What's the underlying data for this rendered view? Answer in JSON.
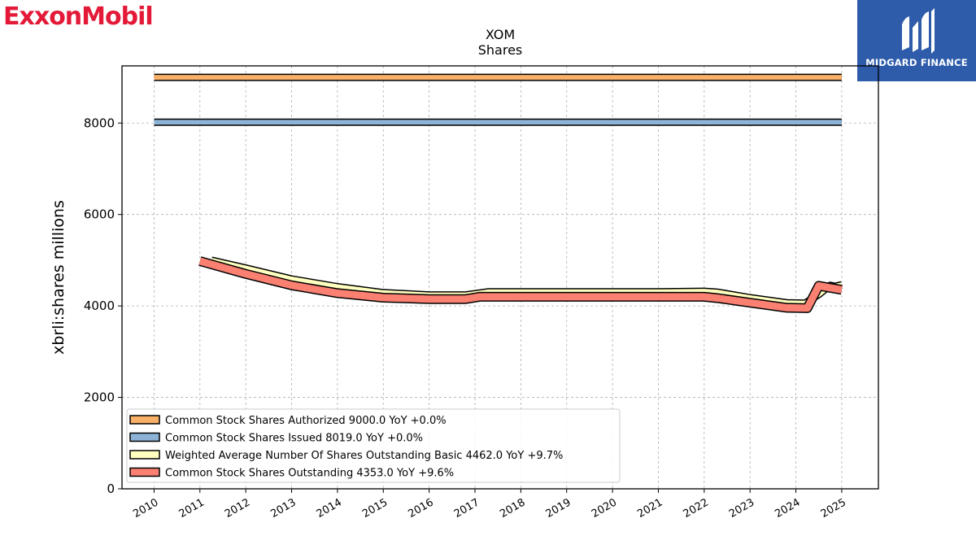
{
  "brand": {
    "logo_text": "ExxonMobil",
    "color": "#e31937"
  },
  "watermark": {
    "name": "MIDGARD FINANCE",
    "bg_color": "#2e5cab"
  },
  "chart_data": {
    "type": "line",
    "title": "XOM",
    "subtitle": "Shares",
    "ylabel": "xbrli:shares millions",
    "xlabel": "",
    "xlim": [
      2009.3,
      2025.8
    ],
    "ylim": [
      0,
      9250
    ],
    "grid": true,
    "legend_position": "lower-left",
    "xticks": [
      "2010",
      "2011",
      "2012",
      "2013",
      "2014",
      "2015",
      "2016",
      "2017",
      "2018",
      "2019",
      "2020",
      "2021",
      "2022",
      "2023",
      "2024",
      "2025"
    ],
    "yticks": [
      0,
      2000,
      4000,
      6000,
      8000
    ],
    "series": [
      {
        "name": "Common Stock Shares Authorized",
        "legend_label": "Common Stock Shares Authorized  9000.0 YoY +0.0%",
        "color": "#f9b067",
        "x": [
          2010.0,
          2025.0
        ],
        "values": [
          9000,
          9000
        ]
      },
      {
        "name": "Common Stock Shares Issued",
        "legend_label": "Common Stock Shares Issued  8019.0 YoY +0.0%",
        "color": "#8db3d6",
        "x": [
          2010.0,
          2025.0
        ],
        "values": [
          8019,
          8019
        ]
      },
      {
        "name": "Weighted Average Number Of Shares Outstanding Basic",
        "legend_label": "Weighted Average Number Of Shares Outstanding Basic  4462.0 YoY +9.7%",
        "color": "#ffffbf",
        "x": [
          2011.25,
          2012.0,
          2013.0,
          2014.0,
          2015.0,
          2016.0,
          2016.8,
          2017.3,
          2018.0,
          2019.0,
          2020.0,
          2021.0,
          2022.0,
          2022.3,
          2023.0,
          2023.8,
          2024.2,
          2024.5,
          2024.75,
          2024.85,
          2025.0
        ],
        "values": [
          5000,
          4830,
          4590,
          4420,
          4290,
          4240,
          4240,
          4310,
          4310,
          4310,
          4310,
          4310,
          4320,
          4300,
          4180,
          4070,
          4060,
          4250,
          4450,
          4430,
          4462
        ]
      },
      {
        "name": "Common Stock Shares Outstanding",
        "legend_label": "Common Stock Shares Outstanding  4353.0 YoY +9.6%",
        "color": "#fa8072",
        "x": [
          2011.0,
          2012.0,
          2013.0,
          2014.0,
          2015.0,
          2016.0,
          2016.8,
          2017.1,
          2018.0,
          2019.0,
          2020.0,
          2021.0,
          2022.0,
          2022.3,
          2023.0,
          2023.8,
          2024.25,
          2024.5,
          2025.0
        ],
        "values": [
          4980,
          4700,
          4450,
          4280,
          4180,
          4150,
          4150,
          4200,
          4200,
          4200,
          4200,
          4200,
          4200,
          4170,
          4070,
          3960,
          3950,
          4440,
          4353
        ]
      }
    ]
  }
}
